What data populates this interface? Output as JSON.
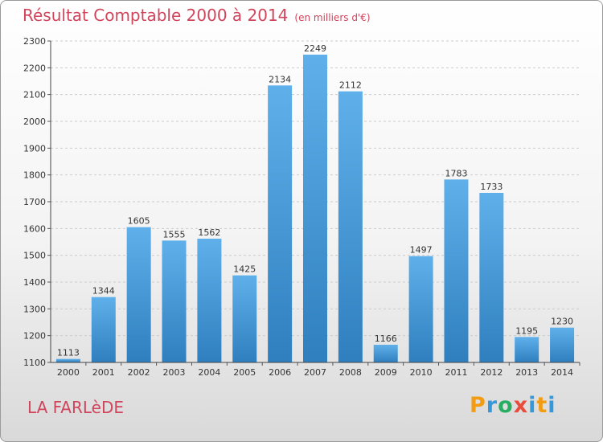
{
  "chart_data": {
    "type": "bar",
    "title": "Résultat Comptable 2000 à 2014",
    "subtitle": "(en milliers d'€)",
    "categories": [
      "2000",
      "2001",
      "2002",
      "2003",
      "2004",
      "2005",
      "2006",
      "2007",
      "2008",
      "2009",
      "2010",
      "2011",
      "2012",
      "2013",
      "2014"
    ],
    "values": [
      1113,
      1344,
      1605,
      1555,
      1562,
      1425,
      2134,
      2249,
      2112,
      1166,
      1497,
      1783,
      1733,
      1195,
      1230
    ],
    "ylim": [
      1100,
      2300
    ],
    "yticks": [
      "1100",
      "1200",
      "1300",
      "1400",
      "1500",
      "1600",
      "1700",
      "1800",
      "1900",
      "2000",
      "2100",
      "2200",
      "2300"
    ],
    "grid": true,
    "xlabel": "",
    "ylabel": ""
  },
  "commune": "LA FARLèDE",
  "brand": {
    "letters": [
      "P",
      "r",
      "o",
      "x",
      "i",
      "t",
      "i"
    ],
    "colors": [
      "#f39c12",
      "#3498db",
      "#27ae60",
      "#e74c3c",
      "#3498db",
      "#f39c12",
      "#3498db"
    ]
  },
  "colors": {
    "bar_top": "#5fb0ea",
    "bar_bottom": "#2f7fbf",
    "title": "#d1455c"
  }
}
